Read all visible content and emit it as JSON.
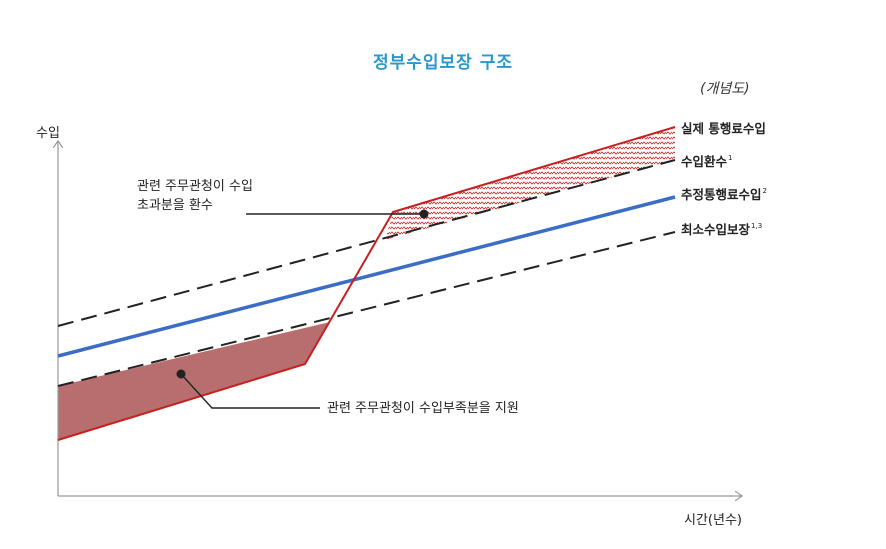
{
  "title": "정부수입보장 구조",
  "concept_note": "(개념도)",
  "axes": {
    "y_label": "수입",
    "x_label": "시간(년수)"
  },
  "series": {
    "actual": {
      "label": "실제 통행료수입",
      "color": "#c8201f"
    },
    "redemption": {
      "label": "수입환수",
      "sup": "1"
    },
    "estimated": {
      "label": "추정통행료수입",
      "sup": "2",
      "color": "#3b6cc6"
    },
    "minimum": {
      "label": "최소수입보장",
      "sup": "1,3"
    }
  },
  "annotations": {
    "excess_line1": "관련 주무관청이 수입",
    "excess_line2": "초과분을 환수",
    "shortfall": "관련 주무관청이 수입부족분을 지원"
  },
  "colors": {
    "shortfall_fill": "#b86e6e",
    "hatch": "#c8201f",
    "dashed": "#222222"
  }
}
